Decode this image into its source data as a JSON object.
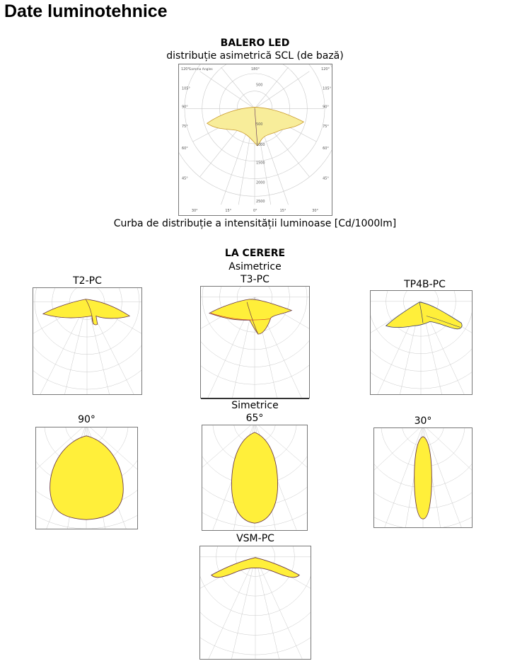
{
  "page": {
    "title": "Date luminotehnice"
  },
  "balero": {
    "heading": "BALERO LED",
    "subheading": "distribuție asimetrică SCL (de bază)",
    "caption": "Curba de distribuție a intensității luminoase [Cd/1000lm]",
    "diagram_label": "Gamma Angles",
    "angles_top": [
      "120°",
      "180°",
      "120°"
    ],
    "angles_left": [
      "105°",
      "90°",
      "75°",
      "60°",
      "45°"
    ],
    "angles_right": [
      "105°",
      "90°",
      "75°",
      "60°",
      "45°"
    ],
    "angles_bottom": [
      "30°",
      "15°",
      "0°",
      "15°",
      "30°"
    ],
    "rings": [
      "500",
      "1000",
      "1500",
      "2000",
      "2500"
    ]
  },
  "la_cerere": {
    "heading": "LA CERERE",
    "asym_label": "Asimetrice",
    "sym_label": "Simetrice",
    "diagrams": {
      "t2": "T2-PC",
      "t3": "T3-PC",
      "tp4b": "TP4B-PC",
      "d90": "90°",
      "d65": "65°",
      "d30": "30°",
      "vsm": "VSM-PC"
    }
  },
  "colors": {
    "fill": "#ffef3a",
    "fill_light": "#f8ed9a",
    "outline": "#5a2a5a",
    "grid": "#bfbfbf"
  }
}
